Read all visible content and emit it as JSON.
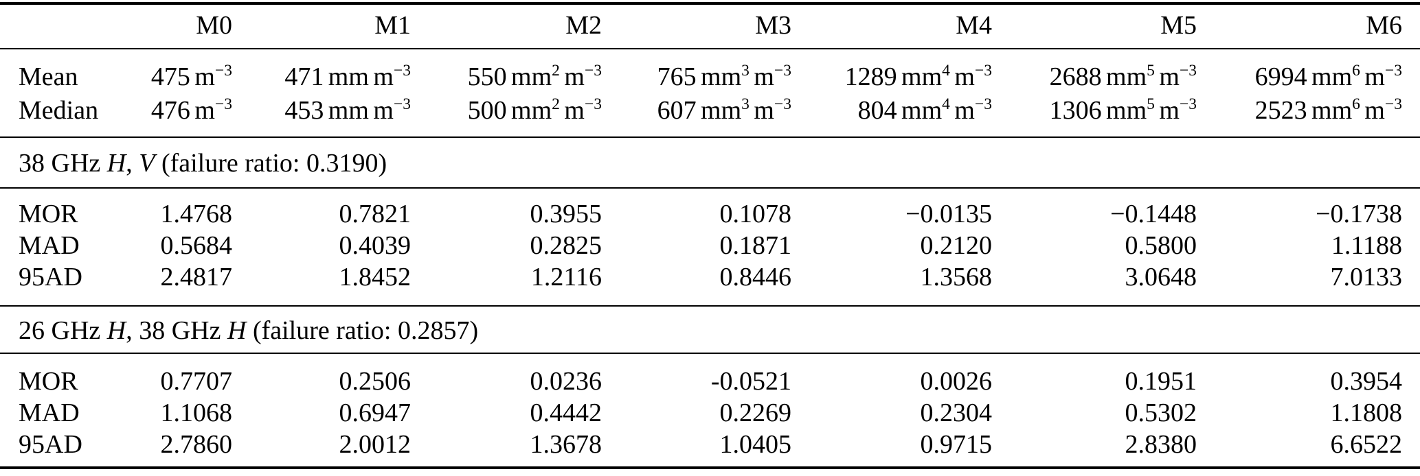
{
  "header": {
    "labels": [
      "",
      "M0",
      "M1",
      "M2",
      "M3",
      "M4",
      "M5",
      "M6"
    ]
  },
  "moment_rows": [
    {
      "label": "Mean",
      "cells": [
        {
          "value": "475",
          "units": [
            {
              "t": "m",
              "s": "−3"
            }
          ]
        },
        {
          "value": "471",
          "units": [
            {
              "t": "mm",
              "s": ""
            },
            {
              "t": "m",
              "s": "−3"
            }
          ]
        },
        {
          "value": "550",
          "units": [
            {
              "t": "mm",
              "s": "2"
            },
            {
              "t": "m",
              "s": "−3"
            }
          ]
        },
        {
          "value": "765",
          "units": [
            {
              "t": "mm",
              "s": "3"
            },
            {
              "t": "m",
              "s": "−3"
            }
          ]
        },
        {
          "value": "1289",
          "units": [
            {
              "t": "mm",
              "s": "4"
            },
            {
              "t": "m",
              "s": "−3"
            }
          ]
        },
        {
          "value": "2688",
          "units": [
            {
              "t": "mm",
              "s": "5"
            },
            {
              "t": "m",
              "s": "−3"
            }
          ]
        },
        {
          "value": "6994",
          "units": [
            {
              "t": "mm",
              "s": "6"
            },
            {
              "t": "m",
              "s": "−3"
            }
          ]
        }
      ]
    },
    {
      "label": "Median",
      "cells": [
        {
          "value": "476",
          "units": [
            {
              "t": "m",
              "s": "−3"
            }
          ]
        },
        {
          "value": "453",
          "units": [
            {
              "t": "mm",
              "s": ""
            },
            {
              "t": "m",
              "s": "−3"
            }
          ]
        },
        {
          "value": "500",
          "units": [
            {
              "t": "mm",
              "s": "2"
            },
            {
              "t": "m",
              "s": "−3"
            }
          ]
        },
        {
          "value": "607",
          "units": [
            {
              "t": "mm",
              "s": "3"
            },
            {
              "t": "m",
              "s": "−3"
            }
          ]
        },
        {
          "value": "804",
          "units": [
            {
              "t": "mm",
              "s": "4"
            },
            {
              "t": "m",
              "s": "−3"
            }
          ]
        },
        {
          "value": "1306",
          "units": [
            {
              "t": "mm",
              "s": "5"
            },
            {
              "t": "m",
              "s": "−3"
            }
          ]
        },
        {
          "value": "2523",
          "units": [
            {
              "t": "mm",
              "s": "6"
            },
            {
              "t": "m",
              "s": "−3"
            }
          ]
        }
      ]
    }
  ],
  "sections": [
    {
      "title": [
        {
          "t": "38 GHz "
        },
        {
          "t": "H",
          "i": true
        },
        {
          "t": ", "
        },
        {
          "t": "V",
          "i": true
        },
        {
          "t": " (failure ratio: 0.3190)"
        }
      ],
      "failure_ratio": "0.3190",
      "stats": [
        {
          "label": "MOR",
          "values": [
            "1.4768",
            "0.7821",
            "0.3955",
            "0.1078",
            "−0.0135",
            "−0.1448",
            "−0.1738"
          ]
        },
        {
          "label": "MAD",
          "values": [
            "0.5684",
            "0.4039",
            "0.2825",
            "0.1871",
            "0.2120",
            "0.5800",
            "1.1188"
          ]
        },
        {
          "label": "95AD",
          "values": [
            "2.4817",
            "1.8452",
            "1.2116",
            "0.8446",
            "1.3568",
            "3.0648",
            "7.0133"
          ]
        }
      ]
    },
    {
      "title": [
        {
          "t": "26 GHz "
        },
        {
          "t": "H",
          "i": true
        },
        {
          "t": ", 38 GHz "
        },
        {
          "t": "H",
          "i": true
        },
        {
          "t": " (failure ratio: 0.2857)"
        }
      ],
      "failure_ratio": "0.2857",
      "stats": [
        {
          "label": "MOR",
          "values": [
            "0.7707",
            "0.2506",
            "0.0236",
            "-0.0521",
            "0.0026",
            "0.1951",
            "0.3954"
          ]
        },
        {
          "label": "MAD",
          "values": [
            "1.1068",
            "0.6947",
            "0.4442",
            "0.2269",
            "0.2304",
            "0.5302",
            "1.1808"
          ]
        },
        {
          "label": "95AD",
          "values": [
            "2.7860",
            "2.0012",
            "1.3678",
            "1.0405",
            "0.9715",
            "2.8380",
            "6.6522"
          ]
        }
      ]
    }
  ]
}
